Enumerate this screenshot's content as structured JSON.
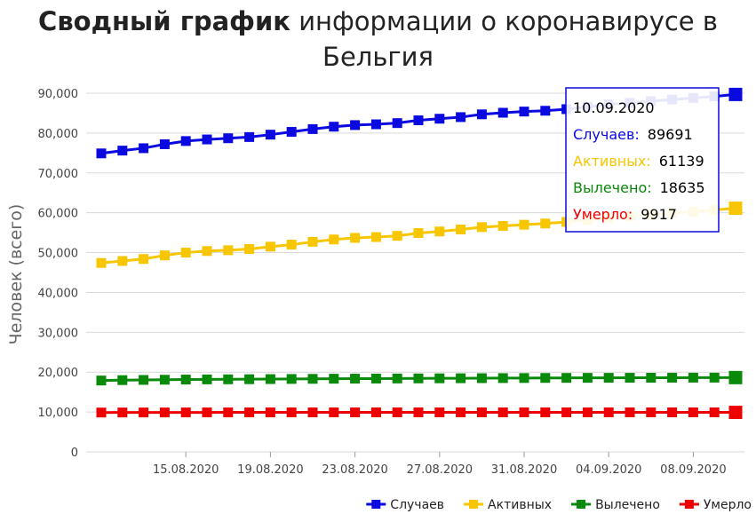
{
  "title": {
    "bold": "Сводный график",
    "rest": "информации о коронавирусе в Бельгия"
  },
  "colors": {
    "cases": "#0a0ae0",
    "active": "#f7c600",
    "recovered": "#0a8a0a",
    "deaths": "#ee0000",
    "grid": "#d9d9d9"
  },
  "chart_data": {
    "type": "line",
    "ylabel": "Человек (всего)",
    "ylim": [
      0,
      90000
    ],
    "yticks": [
      "0",
      "10,000",
      "20,000",
      "30,000",
      "40,000",
      "50,000",
      "60,000",
      "70,000",
      "80,000",
      "90,000"
    ],
    "ytick_values": [
      0,
      10000,
      20000,
      30000,
      40000,
      50000,
      60000,
      70000,
      80000,
      90000
    ],
    "x": [
      "11.08.2020",
      "12.08.2020",
      "13.08.2020",
      "14.08.2020",
      "15.08.2020",
      "16.08.2020",
      "17.08.2020",
      "18.08.2020",
      "19.08.2020",
      "20.08.2020",
      "21.08.2020",
      "22.08.2020",
      "23.08.2020",
      "24.08.2020",
      "25.08.2020",
      "26.08.2020",
      "27.08.2020",
      "28.08.2020",
      "29.08.2020",
      "30.08.2020",
      "31.08.2020",
      "01.09.2020",
      "02.09.2020",
      "03.09.2020",
      "04.09.2020",
      "05.09.2020",
      "06.09.2020",
      "07.09.2020",
      "08.09.2020",
      "09.09.2020",
      "10.09.2020"
    ],
    "xticks": [
      "15.08.2020",
      "19.08.2020",
      "23.08.2020",
      "27.08.2020",
      "31.08.2020",
      "04.09.2020",
      "08.09.2020"
    ],
    "series": [
      {
        "name": "Случаев",
        "key": "cases",
        "values": [
          74900,
          75600,
          76200,
          77200,
          78000,
          78400,
          78700,
          79000,
          79600,
          80300,
          81000,
          81600,
          82000,
          82200,
          82500,
          83200,
          83600,
          84000,
          84700,
          85100,
          85400,
          85600,
          86000,
          86600,
          87200,
          87600,
          88000,
          88400,
          88800,
          89200,
          89691
        ]
      },
      {
        "name": "Активных",
        "key": "active",
        "values": [
          47400,
          47900,
          48400,
          49300,
          50000,
          50400,
          50600,
          50900,
          51500,
          52000,
          52700,
          53300,
          53700,
          53900,
          54200,
          54900,
          55300,
          55800,
          56400,
          56700,
          57000,
          57300,
          57700,
          58200,
          58700,
          59100,
          59500,
          59900,
          60300,
          60700,
          61139
        ]
      },
      {
        "name": "Вылечено",
        "key": "recovered",
        "values": [
          17900,
          18000,
          18050,
          18100,
          18150,
          18180,
          18200,
          18230,
          18260,
          18290,
          18320,
          18350,
          18370,
          18390,
          18410,
          18430,
          18450,
          18470,
          18490,
          18510,
          18530,
          18550,
          18560,
          18570,
          18580,
          18590,
          18600,
          18610,
          18620,
          18625,
          18635
        ]
      },
      {
        "name": "Умерло",
        "key": "deaths",
        "values": [
          9870,
          9880,
          9885,
          9890,
          9895,
          9898,
          9900,
          9902,
          9904,
          9906,
          9907,
          9908,
          9909,
          9910,
          9911,
          9911,
          9912,
          9912,
          9913,
          9913,
          9914,
          9914,
          9914,
          9915,
          9915,
          9915,
          9916,
          9916,
          9916,
          9917,
          9917
        ]
      }
    ],
    "legend_position": "bottom-right",
    "tooltip": {
      "date": "10.09.2020",
      "rows": [
        {
          "label": "Случаев:",
          "value": "89691",
          "key": "cases"
        },
        {
          "label": "Активных:",
          "value": "61139",
          "key": "active"
        },
        {
          "label": "Вылечено:",
          "value": "18635",
          "key": "recovered"
        },
        {
          "label": "Умерло:",
          "value": "9917",
          "key": "deaths"
        }
      ]
    }
  }
}
